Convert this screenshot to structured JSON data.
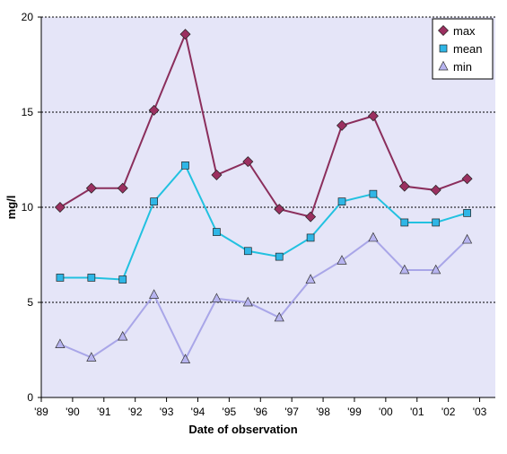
{
  "chart_data": {
    "type": "line",
    "title": "",
    "xlabel": "Date of observation",
    "ylabel": "mg/l",
    "ylim": [
      0,
      20
    ],
    "yticks": [
      0,
      5,
      10,
      15,
      20
    ],
    "xlim": [
      1989,
      2003.5
    ],
    "xticks": [
      {
        "value": 1989,
        "label": "'89"
      },
      {
        "value": 1990,
        "label": "'90"
      },
      {
        "value": 1991,
        "label": "'91"
      },
      {
        "value": 1992,
        "label": "'92"
      },
      {
        "value": 1993,
        "label": "'93"
      },
      {
        "value": 1994,
        "label": "'94"
      },
      {
        "value": 1995,
        "label": "'95"
      },
      {
        "value": 1996,
        "label": "'96"
      },
      {
        "value": 1997,
        "label": "'97"
      },
      {
        "value": 1998,
        "label": "'98"
      },
      {
        "value": 1999,
        "label": "'99"
      },
      {
        "value": 2000,
        "label": "'00"
      },
      {
        "value": 2001,
        "label": "'01"
      },
      {
        "value": 2002,
        "label": "'02"
      },
      {
        "value": 2003,
        "label": "'03"
      }
    ],
    "grid": "horizontal dashed",
    "legend_position": "top-right",
    "plot_background": "#e5e5f8",
    "x": [
      1989.6,
      1990.6,
      1991.6,
      1992.6,
      1993.6,
      1994.6,
      1995.6,
      1996.6,
      1997.6,
      1998.6,
      1999.6,
      2000.6,
      2001.6,
      2002.6
    ],
    "series": [
      {
        "name": "max",
        "marker": "diamond",
        "color": "#8b2e5c",
        "marker_color": "#9b3060",
        "values": [
          10.0,
          11.0,
          11.0,
          15.1,
          19.1,
          11.7,
          12.4,
          9.9,
          9.5,
          14.3,
          14.8,
          11.1,
          10.9,
          11.5
        ]
      },
      {
        "name": "mean",
        "marker": "square",
        "color": "#22c1e0",
        "marker_color": "#2fb6e6",
        "values": [
          6.3,
          6.3,
          6.2,
          10.3,
          12.2,
          8.7,
          7.7,
          7.4,
          8.4,
          10.3,
          10.7,
          9.2,
          9.2,
          9.7
        ]
      },
      {
        "name": "min",
        "marker": "triangle",
        "color": "#a9a6e8",
        "marker_color": "#b7b4f0",
        "values": [
          2.8,
          2.1,
          3.2,
          5.4,
          2.0,
          5.2,
          5.0,
          4.2,
          6.2,
          7.2,
          8.4,
          6.7,
          6.7,
          8.3
        ]
      }
    ]
  }
}
